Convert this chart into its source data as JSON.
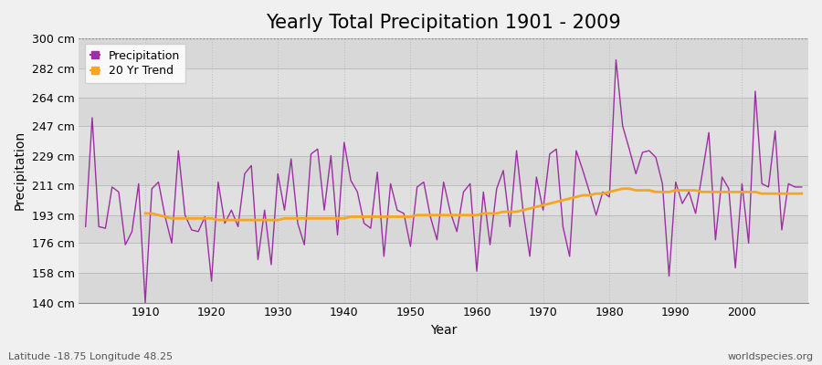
{
  "title": "Yearly Total Precipitation 1901 - 2009",
  "xlabel": "Year",
  "ylabel": "Precipitation",
  "years": [
    1901,
    1902,
    1903,
    1904,
    1905,
    1906,
    1907,
    1908,
    1909,
    1910,
    1911,
    1912,
    1913,
    1914,
    1915,
    1916,
    1917,
    1918,
    1919,
    1920,
    1921,
    1922,
    1923,
    1924,
    1925,
    1926,
    1927,
    1928,
    1929,
    1930,
    1931,
    1932,
    1933,
    1934,
    1935,
    1936,
    1937,
    1938,
    1939,
    1940,
    1941,
    1942,
    1943,
    1944,
    1945,
    1946,
    1947,
    1948,
    1949,
    1950,
    1951,
    1952,
    1953,
    1954,
    1955,
    1956,
    1957,
    1958,
    1959,
    1960,
    1961,
    1962,
    1963,
    1964,
    1965,
    1966,
    1967,
    1968,
    1969,
    1970,
    1971,
    1972,
    1973,
    1974,
    1975,
    1976,
    1977,
    1978,
    1979,
    1980,
    1981,
    1982,
    1983,
    1984,
    1985,
    1986,
    1987,
    1988,
    1989,
    1990,
    1991,
    1992,
    1993,
    1994,
    1995,
    1996,
    1997,
    1998,
    1999,
    2000,
    2001,
    2002,
    2003,
    2004,
    2005,
    2006,
    2007,
    2008,
    2009
  ],
  "precipitation": [
    186,
    252,
    186,
    185,
    210,
    207,
    175,
    183,
    212,
    140,
    209,
    213,
    192,
    176,
    232,
    193,
    184,
    183,
    192,
    153,
    213,
    188,
    196,
    186,
    218,
    223,
    166,
    196,
    163,
    218,
    196,
    227,
    188,
    175,
    230,
    233,
    196,
    229,
    181,
    237,
    214,
    207,
    188,
    185,
    219,
    168,
    212,
    196,
    194,
    174,
    210,
    213,
    192,
    178,
    213,
    195,
    183,
    207,
    212,
    159,
    207,
    175,
    209,
    220,
    186,
    232,
    195,
    168,
    216,
    196,
    230,
    233,
    186,
    168,
    232,
    220,
    207,
    193,
    207,
    204,
    287,
    247,
    233,
    218,
    231,
    232,
    228,
    212,
    156,
    213,
    200,
    207,
    194,
    218,
    243,
    178,
    216,
    209,
    161,
    212,
    176,
    268,
    212,
    210,
    244,
    184,
    212,
    210,
    210
  ],
  "trend": [
    null,
    null,
    null,
    null,
    null,
    null,
    null,
    null,
    null,
    194,
    194,
    193,
    192,
    191,
    191,
    191,
    191,
    191,
    191,
    191,
    190,
    190,
    190,
    190,
    190,
    190,
    190,
    190,
    190,
    190,
    191,
    191,
    191,
    191,
    191,
    191,
    191,
    191,
    191,
    191,
    192,
    192,
    192,
    192,
    192,
    192,
    192,
    192,
    192,
    192,
    193,
    193,
    193,
    193,
    193,
    193,
    193,
    193,
    193,
    193,
    194,
    194,
    194,
    195,
    195,
    195,
    196,
    197,
    198,
    199,
    200,
    201,
    202,
    203,
    204,
    205,
    205,
    206,
    206,
    207,
    208,
    209,
    209,
    208,
    208,
    208,
    207,
    207,
    207,
    208,
    208,
    208,
    208,
    207,
    207,
    207,
    207,
    207,
    207,
    207,
    207,
    207,
    206,
    206,
    206,
    206,
    206,
    206,
    206
  ],
  "ylim": [
    140,
    300
  ],
  "yticks": [
    140,
    158,
    176,
    193,
    211,
    229,
    247,
    264,
    282,
    300
  ],
  "ytick_labels": [
    "140 cm",
    "158 cm",
    "176 cm",
    "193 cm",
    "211 cm",
    "229 cm",
    "247 cm",
    "264 cm",
    "282 cm",
    "300 cm"
  ],
  "band_colors": [
    "#d8d8d8",
    "#e0e0e0"
  ],
  "fig_bg_color": "#f0f0f0",
  "precipitation_color": "#9b30a0",
  "trend_color": "#f5a623",
  "title_fontsize": 15,
  "axis_label_fontsize": 10,
  "tick_fontsize": 9,
  "legend_fontsize": 9,
  "footer_left": "Latitude -18.75 Longitude 48.25",
  "footer_right": "worldspecies.org",
  "hline_value": 300,
  "hline_color": "#888888",
  "hline_style": "dotted",
  "vgrid_color": "#c0c0c0",
  "vgrid_style": "dotted"
}
